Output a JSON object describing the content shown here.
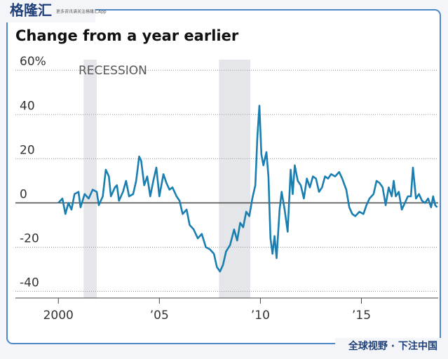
{
  "branding": {
    "logo": "格隆汇",
    "tagline": "更多资讯请关注格隆汇App",
    "footer": "全球视野 · 下注中国"
  },
  "chart_data": {
    "type": "line",
    "title": "Change from a year earlier",
    "annotation": "RECESSION",
    "color": "#1a7fb0",
    "recession_color": "#e4e6e9",
    "recessions": [
      [
        2001.25,
        2001.9
      ],
      [
        2007.95,
        2009.5
      ]
    ],
    "xlim": [
      1998.5,
      2018.8
    ],
    "ylim": [
      -43,
      68
    ],
    "xticks": [
      2000,
      {
        "value": 2005,
        "label": "’05"
      },
      {
        "value": 2010,
        "label": "’10"
      },
      {
        "value": 2015,
        "label": "’15"
      }
    ],
    "yticks": [
      {
        "value": 60,
        "label": "60%"
      },
      40,
      20,
      0,
      -20,
      -40
    ],
    "x": [
      2000.0,
      2000.2,
      2000.35,
      2000.5,
      2000.65,
      2000.8,
      2001.0,
      2001.1,
      2001.3,
      2001.5,
      2001.7,
      2001.9,
      2002.0,
      2002.2,
      2002.35,
      2002.5,
      2002.6,
      2002.8,
      2002.9,
      2003.0,
      2003.2,
      2003.35,
      2003.5,
      2003.7,
      2003.85,
      2004.0,
      2004.1,
      2004.25,
      2004.4,
      2004.55,
      2004.7,
      2004.85,
      2005.0,
      2005.2,
      2005.35,
      2005.5,
      2005.65,
      2005.85,
      2006.0,
      2006.15,
      2006.35,
      2006.5,
      2006.7,
      2006.9,
      2007.1,
      2007.3,
      2007.5,
      2007.7,
      2007.85,
      2008.0,
      2008.15,
      2008.3,
      2008.5,
      2008.7,
      2008.85,
      2009.0,
      2009.15,
      2009.3,
      2009.45,
      2009.6,
      2009.75,
      2009.85,
      2009.95,
      2010.05,
      2010.15,
      2010.3,
      2010.4,
      2010.5,
      2010.6,
      2010.7,
      2010.8,
      2010.95,
      2011.05,
      2011.2,
      2011.35,
      2011.5,
      2011.6,
      2011.7,
      2011.85,
      2012.0,
      2012.15,
      2012.3,
      2012.45,
      2012.6,
      2012.75,
      2012.9,
      2013.05,
      2013.2,
      2013.35,
      2013.5,
      2013.7,
      2013.9,
      2014.05,
      2014.25,
      2014.4,
      2014.55,
      2014.7,
      2014.9,
      2015.1,
      2015.25,
      2015.4,
      2015.6,
      2015.75,
      2015.9,
      2016.05,
      2016.2,
      2016.35,
      2016.5,
      2016.6,
      2016.7,
      2016.85,
      2017.0,
      2017.15,
      2017.3,
      2017.45,
      2017.55,
      2017.7,
      2017.85,
      2018.0,
      2018.15,
      2018.3,
      2018.45,
      2018.55,
      2018.65,
      2018.75
    ],
    "values": [
      0,
      2,
      -5,
      0,
      -3,
      4,
      5,
      -2,
      4,
      2,
      6,
      5,
      -1,
      3,
      15,
      12,
      3,
      7,
      8,
      1,
      5,
      10,
      3,
      4,
      10,
      21,
      19,
      8,
      12,
      3,
      10,
      16,
      3,
      13,
      9,
      6,
      7,
      3,
      1,
      -5,
      -3,
      -10,
      -12,
      -16,
      -14,
      -20,
      -21,
      -23,
      -29,
      -31,
      -28,
      -22,
      -19,
      -12,
      -17,
      -9,
      -11,
      -4,
      -6,
      2,
      8,
      30,
      44,
      22,
      17,
      23,
      12,
      -16,
      -23,
      -15,
      -25,
      -3,
      5,
      -3,
      -13,
      15,
      4,
      17,
      10,
      8,
      2,
      11,
      7,
      12,
      11,
      5,
      7,
      12,
      11,
      13,
      12,
      14,
      11,
      6,
      -2,
      -5,
      -6,
      -4,
      -5,
      -1,
      2,
      4,
      10,
      9,
      7,
      -1,
      7,
      3,
      10,
      3,
      5,
      -3,
      0,
      3,
      3,
      16,
      2,
      4,
      1,
      0,
      2,
      -2,
      3,
      -1,
      -2
    ]
  }
}
